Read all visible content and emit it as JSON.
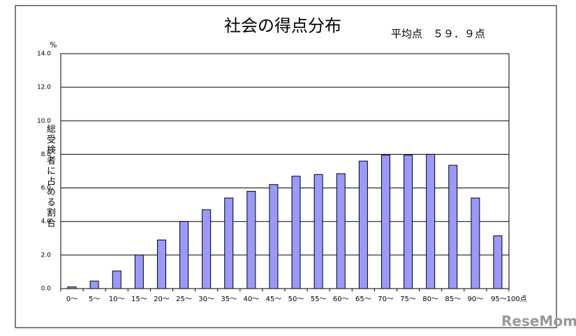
{
  "chart_data": {
    "type": "bar",
    "title": "社会の得点分布",
    "subtitle": "平均点　５９．９点",
    "y_unit": "%",
    "y_label": "総受検者に占める割合",
    "categories": [
      "0～",
      "5～",
      "10～",
      "15～",
      "20～",
      "25～",
      "30～",
      "35～",
      "40～",
      "45～",
      "50～",
      "55～",
      "60～",
      "65～",
      "70～",
      "75～",
      "80～",
      "85～",
      "90～",
      "95～100点"
    ],
    "values": [
      0.1,
      0.45,
      1.05,
      2.0,
      2.9,
      4.0,
      4.7,
      5.4,
      5.8,
      6.2,
      6.7,
      6.8,
      6.85,
      7.6,
      7.95,
      7.95,
      8.0,
      7.35,
      5.4,
      3.15
    ],
    "color": "#9999ff",
    "ylim": [
      0,
      14
    ],
    "yticks": [
      {
        "value": 0,
        "label": "0.0"
      },
      {
        "value": 2,
        "label": "2.0"
      },
      {
        "value": 4,
        "label": "4.0"
      },
      {
        "value": 6,
        "label": "6.0"
      },
      {
        "value": 8,
        "label": "8.0"
      },
      {
        "value": 10,
        "label": "10.0"
      },
      {
        "value": 12,
        "label": "12.0"
      },
      {
        "value": 14,
        "label": "14.0"
      }
    ],
    "grid": true
  },
  "watermark": "ReseMom"
}
